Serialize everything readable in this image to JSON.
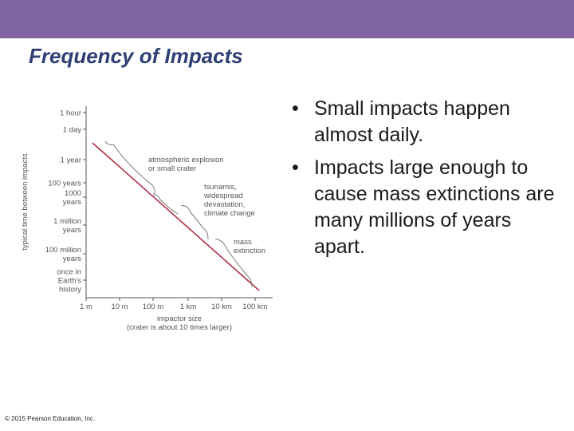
{
  "slide": {
    "title": "Frequency of Impacts",
    "bullets": [
      "Small impacts happen almost daily.",
      "Impacts large enough to cause mass extinctions are many millions of years apart."
    ],
    "copyright": "© 2015 Pearson Education, Inc.",
    "colors": {
      "header_bar": "#8064a2",
      "title": "#2f3f75",
      "line": "#b03048"
    }
  },
  "chart_data": {
    "type": "line",
    "ylabel": "typical time between impacts",
    "xlabel_lines": [
      "impactor size",
      "(crater is about 10 times larger)"
    ],
    "x_ticks": [
      "1 m",
      "10 m",
      "100 m",
      "1 km",
      "10 km",
      "100 km"
    ],
    "y_ticks": [
      [
        "1 hour"
      ],
      [
        "1 day"
      ],
      [
        "1 year"
      ],
      [
        "100 years"
      ],
      [
        "1000",
        "years"
      ],
      [
        "1 million",
        "years"
      ],
      [
        "100 million",
        "years"
      ],
      [
        "once in",
        "Earth's",
        "history"
      ]
    ],
    "series": [
      {
        "x": [
          "1 m",
          "100 km"
        ],
        "y": [
          "≈ 1 day",
          "≈ once in Earth's history"
        ]
      }
    ],
    "annotations": [
      [
        "atmospheric explosion",
        "or small crater"
      ],
      [
        "tsunamis,",
        "widespread",
        "devastation,",
        "climate change"
      ],
      [
        "mass",
        "extinction"
      ]
    ],
    "grid": false,
    "scale": "log-log"
  }
}
